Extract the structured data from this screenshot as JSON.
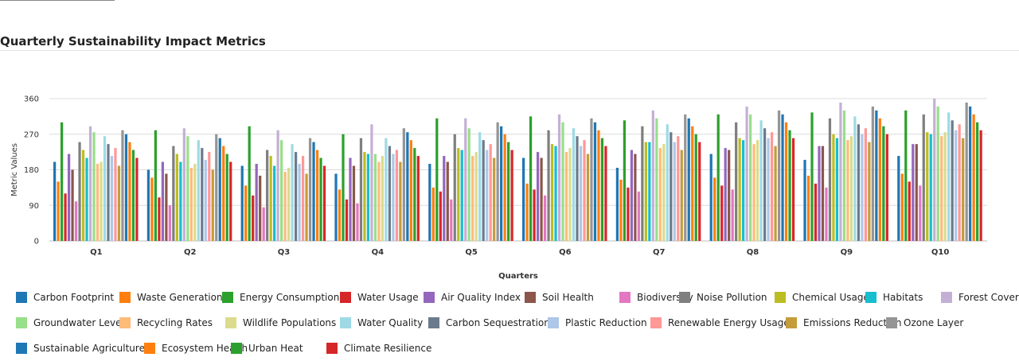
{
  "title": "Quarterly Sustainability Impact Metrics",
  "chart_data": {
    "type": "bar",
    "title": "Quarterly Sustainability Impact Metrics",
    "xlabel": "Quarters",
    "ylabel": "Metric Values",
    "ylim": [
      0,
      360
    ],
    "yticks": [
      0,
      90,
      180,
      270,
      360
    ],
    "grid": true,
    "legend_position": "bottom",
    "categories": [
      "Q1",
      "Q2",
      "Q3",
      "Q4",
      "Q5",
      "Q6",
      "Q7",
      "Q8",
      "Q9",
      "Q10"
    ],
    "series": [
      {
        "name": "Carbon Footprint",
        "color": "#1f77b4",
        "values": [
          200,
          180,
          190,
          170,
          195,
          210,
          185,
          220,
          205,
          215
        ]
      },
      {
        "name": "Waste Generation",
        "color": "#ff7f0e",
        "values": [
          150,
          160,
          140,
          130,
          135,
          145,
          155,
          160,
          165,
          170
        ]
      },
      {
        "name": "Energy Consumption",
        "color": "#2ca02c",
        "values": [
          300,
          280,
          290,
          270,
          310,
          315,
          305,
          320,
          325,
          330
        ]
      },
      {
        "name": "Water Usage",
        "color": "#d62728",
        "values": [
          120,
          110,
          115,
          105,
          125,
          130,
          135,
          140,
          145,
          150
        ]
      },
      {
        "name": "Air Quality Index",
        "color": "#9467bd",
        "values": [
          220,
          200,
          195,
          210,
          215,
          225,
          230,
          235,
          240,
          245
        ]
      },
      {
        "name": "Soil Health",
        "color": "#8c564b",
        "values": [
          180,
          170,
          165,
          190,
          200,
          210,
          220,
          230,
          240,
          245
        ]
      },
      {
        "name": "Biodiversity",
        "color": "#e377c2",
        "values": [
          100,
          90,
          85,
          95,
          105,
          115,
          125,
          130,
          135,
          140
        ]
      },
      {
        "name": "Noise Pollution",
        "color": "#7f7f7f",
        "values": [
          250,
          240,
          230,
          260,
          270,
          280,
          290,
          300,
          310,
          320
        ]
      },
      {
        "name": "Chemical Usage",
        "color": "#bcbd22",
        "values": [
          230,
          220,
          215,
          225,
          235,
          245,
          250,
          260,
          270,
          275
        ]
      },
      {
        "name": "Habitats",
        "color": "#17becf",
        "values": [
          210,
          200,
          190,
          220,
          230,
          240,
          250,
          255,
          260,
          270
        ]
      },
      {
        "name": "Forest Cover",
        "color": "#c5b0d5",
        "values": [
          290,
          285,
          280,
          295,
          310,
          320,
          330,
          340,
          350,
          360
        ]
      },
      {
        "name": "Groundwater Levels",
        "color": "#98df8a",
        "values": [
          275,
          265,
          255,
          220,
          285,
          300,
          310,
          320,
          330,
          340
        ]
      },
      {
        "name": "Recycling Rates",
        "color": "#ffbb78",
        "values": [
          195,
          185,
          175,
          200,
          215,
          225,
          235,
          245,
          255,
          265
        ]
      },
      {
        "name": "Wildlife Populations",
        "color": "#dbdb8d",
        "values": [
          200,
          195,
          185,
          215,
          225,
          235,
          245,
          255,
          265,
          275
        ]
      },
      {
        "name": "Water Quality",
        "color": "#9edae5",
        "values": [
          265,
          255,
          245,
          260,
          275,
          285,
          295,
          305,
          315,
          325
        ]
      },
      {
        "name": "Carbon Sequestration",
        "color": "#6b7b8c",
        "values": [
          245,
          235,
          225,
          240,
          255,
          265,
          275,
          285,
          295,
          305
        ]
      },
      {
        "name": "Plastic Reduction",
        "color": "#aec7e8",
        "values": [
          215,
          205,
          195,
          220,
          230,
          240,
          250,
          260,
          270,
          280
        ]
      },
      {
        "name": "Renewable Energy Usage",
        "color": "#ff9896",
        "values": [
          235,
          225,
          215,
          230,
          245,
          255,
          265,
          275,
          285,
          295
        ]
      },
      {
        "name": "Emissions Reduction",
        "color": "#c49c3c",
        "values": [
          190,
          180,
          170,
          200,
          210,
          220,
          230,
          240,
          250,
          260
        ]
      },
      {
        "name": "Ozone Layer",
        "color": "#959595",
        "values": [
          280,
          270,
          260,
          285,
          300,
          310,
          320,
          330,
          340,
          350
        ]
      },
      {
        "name": "Sustainable Agriculture",
        "color": "#1f77b4",
        "values": [
          270,
          260,
          250,
          275,
          290,
          300,
          310,
          320,
          330,
          340
        ]
      },
      {
        "name": "Ecosystem Health",
        "color": "#ff7f0e",
        "values": [
          250,
          240,
          230,
          255,
          270,
          280,
          290,
          300,
          310,
          320
        ]
      },
      {
        "name": "Urban Heat",
        "color": "#2ca02c",
        "values": [
          230,
          220,
          210,
          235,
          250,
          260,
          270,
          280,
          290,
          300
        ]
      },
      {
        "name": "Climate Resilience",
        "color": "#d62728",
        "values": [
          210,
          200,
          190,
          215,
          230,
          240,
          250,
          260,
          270,
          280
        ]
      }
    ]
  }
}
